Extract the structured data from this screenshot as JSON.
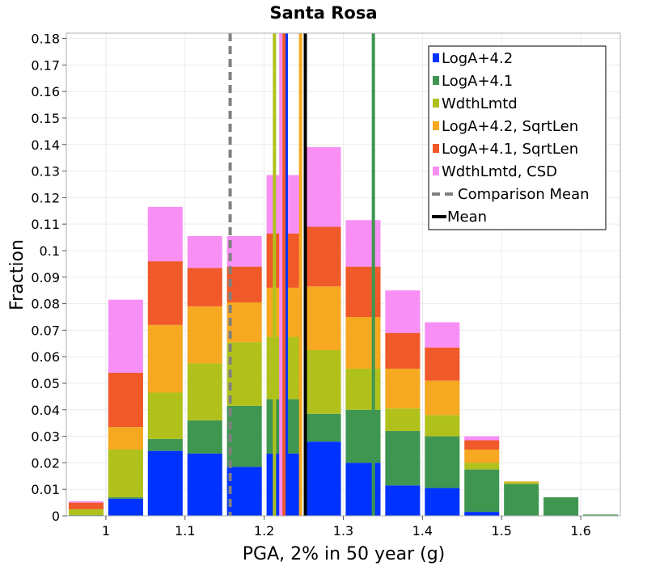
{
  "chart_data": {
    "type": "bar",
    "stacked": true,
    "title": "Santa Rosa",
    "xlabel": "PGA, 2% in 50 year (g)",
    "ylabel": "Fraction",
    "xlim": [
      0.95,
      1.65
    ],
    "ylim": [
      0,
      0.182
    ],
    "grid": true,
    "legend_position": "top-right",
    "xticks": [
      1,
      1.1,
      1.2,
      1.3,
      1.4,
      1.5,
      1.6
    ],
    "xtick_labels": [
      "1",
      "1.1",
      "1.2",
      "1.3",
      "1.4",
      "1.5",
      "1.6"
    ],
    "yticks": [
      0,
      0.01,
      0.02,
      0.03,
      0.04,
      0.05,
      0.06,
      0.07,
      0.08,
      0.09,
      0.1,
      0.11,
      0.12,
      0.13,
      0.14,
      0.15,
      0.16,
      0.17,
      0.18
    ],
    "ytick_labels": [
      "0",
      "0.01",
      "0.02",
      "0.03",
      "0.04",
      "0.05",
      "0.06",
      "0.07",
      "0.08",
      "0.09",
      "0.1",
      "0.11",
      "0.12",
      "0.13",
      "0.14",
      "0.15",
      "0.16",
      "0.17",
      "0.18"
    ],
    "bin_width": 0.05,
    "bin_centers": [
      0.975,
      1.025,
      1.075,
      1.125,
      1.175,
      1.225,
      1.275,
      1.325,
      1.375,
      1.425,
      1.475,
      1.525,
      1.575,
      1.625
    ],
    "series": [
      {
        "name": "LogA+4.2",
        "color": "#0033ff",
        "values": [
          0.0,
          0.0065,
          0.0245,
          0.0235,
          0.0185,
          0.0235,
          0.028,
          0.02,
          0.0115,
          0.0105,
          0.0015,
          0.0,
          0.0,
          0.0
        ]
      },
      {
        "name": "LogA+4.1",
        "color": "#3f9651",
        "values": [
          0.0003,
          0.0005,
          0.0045,
          0.0125,
          0.023,
          0.0205,
          0.0105,
          0.02,
          0.0205,
          0.0195,
          0.016,
          0.012,
          0.007,
          0.0005
        ]
      },
      {
        "name": "WdthLmtd",
        "color": "#b0c11c",
        "values": [
          0.0022,
          0.018,
          0.0175,
          0.0215,
          0.024,
          0.0235,
          0.024,
          0.0155,
          0.0085,
          0.008,
          0.0025,
          0.0007,
          0.0,
          0.0
        ]
      },
      {
        "name": "LogA+4.2, SqrtLen",
        "color": "#f6a821",
        "values": [
          0.0,
          0.0085,
          0.0255,
          0.0215,
          0.015,
          0.0185,
          0.024,
          0.0195,
          0.015,
          0.013,
          0.005,
          0.0003,
          0.0,
          0.0
        ]
      },
      {
        "name": "LogA+4.1, SqrtLen",
        "color": "#f0592a",
        "values": [
          0.0025,
          0.0205,
          0.024,
          0.0145,
          0.0135,
          0.0205,
          0.0225,
          0.019,
          0.0135,
          0.0125,
          0.0035,
          0.0,
          0.0,
          0.0
        ]
      },
      {
        "name": "WdthLmtd, CSD",
        "color": "#f88ff5",
        "values": [
          0.0005,
          0.0275,
          0.0205,
          0.012,
          0.0115,
          0.022,
          0.03,
          0.0175,
          0.016,
          0.0095,
          0.0015,
          0.0,
          0.0,
          0.0
        ]
      }
    ],
    "vertical_lines": [
      {
        "name": "LogA+4.2 mean",
        "x": 1.228,
        "color": "#0033ff",
        "style": "solid"
      },
      {
        "name": "LogA+4.1 mean",
        "x": 1.338,
        "color": "#3f9651",
        "style": "solid"
      },
      {
        "name": "WdthLmtd mean",
        "x": 1.213,
        "color": "#b0c11c",
        "style": "solid"
      },
      {
        "name": "LogA+4.2, SqrtLen mean",
        "x": 1.246,
        "color": "#f6a821",
        "style": "solid"
      },
      {
        "name": "LogA+4.1, SqrtLen mean",
        "x": 1.225,
        "color": "#f0592a",
        "style": "solid"
      },
      {
        "name": "WdthLmtd, CSD mean",
        "x": 1.221,
        "color": "#f88ff5",
        "style": "solid"
      },
      {
        "name": "Comparison Mean",
        "x": 1.157,
        "color": "#808080",
        "style": "dashed"
      },
      {
        "name": "Mean",
        "x": 1.252,
        "color": "#000000",
        "style": "solid"
      }
    ],
    "legend": [
      {
        "label": "LogA+4.2",
        "marker": "square",
        "color": "#0033ff"
      },
      {
        "label": "LogA+4.1",
        "marker": "square",
        "color": "#3f9651"
      },
      {
        "label": "WdthLmtd",
        "marker": "square",
        "color": "#b0c11c"
      },
      {
        "label": "LogA+4.2, SqrtLen",
        "marker": "square",
        "color": "#f6a821"
      },
      {
        "label": "LogA+4.1, SqrtLen",
        "marker": "square",
        "color": "#f0592a"
      },
      {
        "label": "WdthLmtd, CSD",
        "marker": "square",
        "color": "#f88ff5"
      },
      {
        "label": "Comparison Mean",
        "marker": "dashed-line",
        "color": "#808080"
      },
      {
        "label": "Mean",
        "marker": "line",
        "color": "#000000"
      }
    ]
  }
}
